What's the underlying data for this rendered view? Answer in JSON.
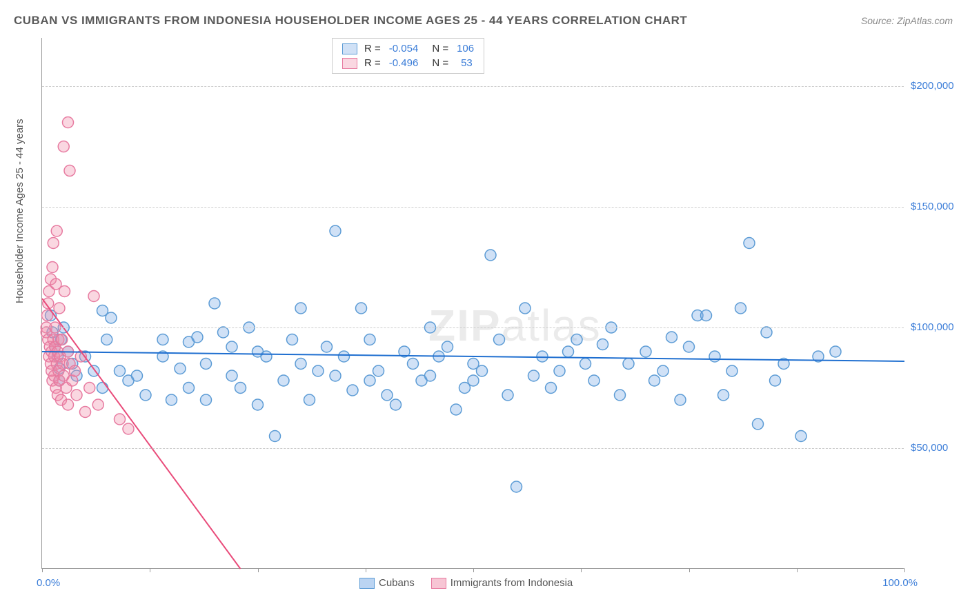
{
  "title": "CUBAN VS IMMIGRANTS FROM INDONESIA HOUSEHOLDER INCOME AGES 25 - 44 YEARS CORRELATION CHART",
  "source": "Source: ZipAtlas.com",
  "ylabel": "Householder Income Ages 25 - 44 years",
  "watermark": {
    "bold": "ZIP",
    "thin": "atlas"
  },
  "chart": {
    "type": "scatter",
    "xlim": [
      0,
      100
    ],
    "ylim": [
      0,
      220000
    ],
    "x_axis_min_label": "0.0%",
    "x_axis_max_label": "100.0%",
    "y_ticks": [
      50000,
      100000,
      150000,
      200000
    ],
    "y_tick_labels": [
      "$50,000",
      "$100,000",
      "$150,000",
      "$200,000"
    ],
    "x_ticks": [
      0,
      12.5,
      25,
      37.5,
      50,
      62.5,
      75,
      87.5,
      100
    ],
    "grid_color": "#cccccc",
    "axis_color": "#999999",
    "background_color": "#ffffff",
    "marker_radius": 8,
    "marker_stroke_width": 1.5,
    "series": [
      {
        "name": "Cubans",
        "fill_color": "rgba(120,170,230,0.35)",
        "stroke_color": "#5b9bd5",
        "trend_color": "#1f6fd0",
        "trend_width": 2,
        "R": "-0.054",
        "N": "106",
        "trend": {
          "x1": 0,
          "y1": 90000,
          "x2": 100,
          "y2": 86000
        },
        "points": [
          [
            1,
            105000
          ],
          [
            1.2,
            98000
          ],
          [
            1.5,
            92000
          ],
          [
            1.8,
            88000
          ],
          [
            2,
            83000
          ],
          [
            2,
            78000
          ],
          [
            2.2,
            95000
          ],
          [
            2.5,
            100000
          ],
          [
            3,
            90000
          ],
          [
            3.5,
            85000
          ],
          [
            4,
            80000
          ],
          [
            5,
            88000
          ],
          [
            6,
            82000
          ],
          [
            7,
            75000
          ],
          [
            7.5,
            95000
          ],
          [
            7,
            107000
          ],
          [
            8,
            104000
          ],
          [
            9,
            82000
          ],
          [
            10,
            78000
          ],
          [
            11,
            80000
          ],
          [
            12,
            72000
          ],
          [
            14,
            95000
          ],
          [
            14,
            88000
          ],
          [
            15,
            70000
          ],
          [
            16,
            83000
          ],
          [
            17,
            94000
          ],
          [
            17,
            75000
          ],
          [
            18,
            96000
          ],
          [
            19,
            85000
          ],
          [
            19,
            70000
          ],
          [
            20,
            110000
          ],
          [
            21,
            98000
          ],
          [
            22,
            80000
          ],
          [
            22,
            92000
          ],
          [
            23,
            75000
          ],
          [
            24,
            100000
          ],
          [
            25,
            68000
          ],
          [
            25,
            90000
          ],
          [
            26,
            88000
          ],
          [
            27,
            55000
          ],
          [
            28,
            78000
          ],
          [
            29,
            95000
          ],
          [
            30,
            85000
          ],
          [
            30,
            108000
          ],
          [
            31,
            70000
          ],
          [
            32,
            82000
          ],
          [
            33,
            92000
          ],
          [
            34,
            140000
          ],
          [
            34,
            80000
          ],
          [
            35,
            88000
          ],
          [
            36,
            74000
          ],
          [
            37,
            108000
          ],
          [
            38,
            95000
          ],
          [
            38,
            78000
          ],
          [
            39,
            82000
          ],
          [
            40,
            72000
          ],
          [
            41,
            68000
          ],
          [
            42,
            90000
          ],
          [
            43,
            85000
          ],
          [
            44,
            78000
          ],
          [
            45,
            100000
          ],
          [
            45,
            80000
          ],
          [
            46,
            88000
          ],
          [
            47,
            92000
          ],
          [
            48,
            66000
          ],
          [
            49,
            75000
          ],
          [
            50,
            85000
          ],
          [
            50,
            78000
          ],
          [
            51,
            82000
          ],
          [
            52,
            130000
          ],
          [
            53,
            95000
          ],
          [
            54,
            72000
          ],
          [
            55,
            34000
          ],
          [
            56,
            108000
          ],
          [
            57,
            80000
          ],
          [
            58,
            88000
          ],
          [
            59,
            75000
          ],
          [
            60,
            82000
          ],
          [
            61,
            90000
          ],
          [
            62,
            95000
          ],
          [
            63,
            85000
          ],
          [
            64,
            78000
          ],
          [
            65,
            93000
          ],
          [
            66,
            100000
          ],
          [
            67,
            72000
          ],
          [
            68,
            85000
          ],
          [
            70,
            90000
          ],
          [
            71,
            78000
          ],
          [
            72,
            82000
          ],
          [
            73,
            96000
          ],
          [
            74,
            70000
          ],
          [
            75,
            92000
          ],
          [
            76,
            105000
          ],
          [
            77,
            105000
          ],
          [
            78,
            88000
          ],
          [
            79,
            72000
          ],
          [
            80,
            82000
          ],
          [
            81,
            108000
          ],
          [
            82,
            135000
          ],
          [
            83,
            60000
          ],
          [
            84,
            98000
          ],
          [
            85,
            78000
          ],
          [
            86,
            85000
          ],
          [
            88,
            55000
          ],
          [
            90,
            88000
          ],
          [
            92,
            90000
          ]
        ]
      },
      {
        "name": "Immigrants from Indonesia",
        "fill_color": "rgba(240,140,170,0.35)",
        "stroke_color": "#e77aa0",
        "trend_color": "#e94b7a",
        "trend_width": 2,
        "R": "-0.496",
        "N": "53",
        "trend": {
          "x1": 0,
          "y1": 112000,
          "x2": 23,
          "y2": 0
        },
        "points": [
          [
            0.5,
            100000
          ],
          [
            0.5,
            98000
          ],
          [
            0.6,
            105000
          ],
          [
            0.7,
            95000
          ],
          [
            0.7,
            110000
          ],
          [
            0.8,
            88000
          ],
          [
            0.8,
            115000
          ],
          [
            0.9,
            92000
          ],
          [
            1,
            85000
          ],
          [
            1,
            120000
          ],
          [
            1.1,
            82000
          ],
          [
            1.1,
            90000
          ],
          [
            1.2,
            78000
          ],
          [
            1.2,
            125000
          ],
          [
            1.3,
            95000
          ],
          [
            1.3,
            135000
          ],
          [
            1.4,
            88000
          ],
          [
            1.4,
            80000
          ],
          [
            1.5,
            100000
          ],
          [
            1.5,
            92000
          ],
          [
            1.6,
            75000
          ],
          [
            1.6,
            118000
          ],
          [
            1.7,
            85000
          ],
          [
            1.7,
            140000
          ],
          [
            1.8,
            90000
          ],
          [
            1.8,
            72000
          ],
          [
            1.9,
            95000
          ],
          [
            1.9,
            82000
          ],
          [
            2,
            108000
          ],
          [
            2,
            78000
          ],
          [
            2.1,
            88000
          ],
          [
            2.2,
            70000
          ],
          [
            2.3,
            95000
          ],
          [
            2.4,
            85000
          ],
          [
            2.5,
            80000
          ],
          [
            2.6,
            115000
          ],
          [
            2.8,
            75000
          ],
          [
            3,
            90000
          ],
          [
            3,
            68000
          ],
          [
            3.2,
            85000
          ],
          [
            3.5,
            78000
          ],
          [
            3.8,
            82000
          ],
          [
            4,
            72000
          ],
          [
            4.5,
            88000
          ],
          [
            5,
            65000
          ],
          [
            5.5,
            75000
          ],
          [
            6,
            113000
          ],
          [
            6.5,
            68000
          ],
          [
            3,
            185000
          ],
          [
            2.5,
            175000
          ],
          [
            3.2,
            165000
          ],
          [
            9,
            62000
          ],
          [
            10,
            58000
          ]
        ]
      }
    ]
  },
  "legend_bottom": [
    {
      "label": "Cubans",
      "fill": "rgba(120,170,230,0.5)",
      "stroke": "#5b9bd5"
    },
    {
      "label": "Immigrants from Indonesia",
      "fill": "rgba(240,140,170,0.5)",
      "stroke": "#e77aa0"
    }
  ]
}
